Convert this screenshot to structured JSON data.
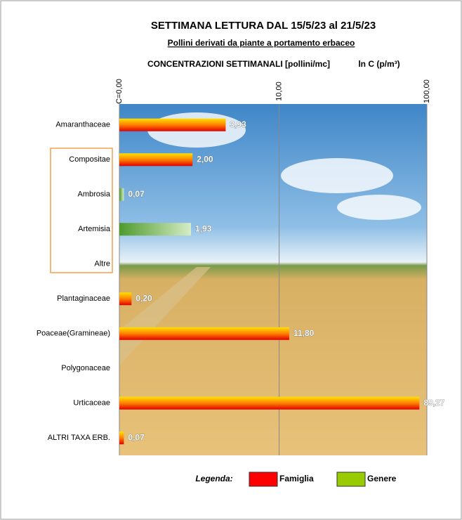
{
  "chart_data": {
    "type": "bar",
    "orientation": "horizontal",
    "title": "SETTIMANA LETTURA DAL 15/5/23 al 21/5/23",
    "subtitle": "Pollini derivati da piante a portamento erbaceo",
    "xlabel": "CONCENTRAZIONI SETTIMANALI  [pollini/mc]",
    "xlabel2": "ln C (p/m³)",
    "legend_title": "Legenda:",
    "xscale": "log1p",
    "xlim": [
      0,
      100
    ],
    "xticks": [
      {
        "value": 0,
        "label": "C=0,00"
      },
      {
        "value": 10,
        "label": "10,00"
      },
      {
        "value": 100,
        "label": "100,00"
      }
    ],
    "grid": true,
    "categories": [
      "Amaranthaceae",
      "Compositae",
      "Ambrosia",
      "Artemisia",
      "Altre",
      "Plantaginaceae",
      "Poaceae(Gramineae)",
      "Polygonaceae",
      "Urticaceae",
      "ALTRI TAXA ERB."
    ],
    "series": [
      {
        "name": "Famiglia",
        "color": "#ff0000",
        "values": [
          3.93,
          2.0,
          null,
          null,
          null,
          0.2,
          11.8,
          null,
          89.27,
          0.07
        ],
        "value_labels": [
          "3,93",
          "2,00",
          null,
          null,
          null,
          "0,20",
          "11,80",
          null,
          "89,27",
          "0,07"
        ]
      },
      {
        "name": "Genere",
        "color": "#99cc00",
        "values": [
          null,
          null,
          0.07,
          1.93,
          null,
          null,
          null,
          null,
          null,
          null
        ],
        "value_labels": [
          null,
          null,
          "0,07",
          "1,93",
          null,
          null,
          null,
          null,
          null,
          null
        ]
      }
    ]
  }
}
